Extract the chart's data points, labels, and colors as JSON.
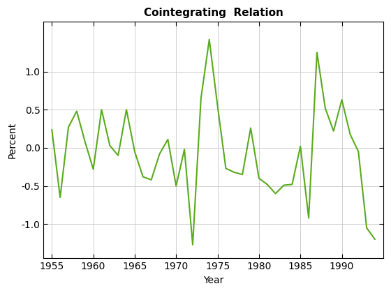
{
  "title": "Cointegrating  Relation",
  "xlabel": "Year",
  "ylabel": "Percent",
  "line_color": "#5aaa1e",
  "line_width": 1.5,
  "background_color": "#ffffff",
  "grid_color": "#c8c8c8",
  "years": [
    1955,
    1956,
    1957,
    1958,
    1959,
    1960,
    1961,
    1962,
    1963,
    1964,
    1965,
    1966,
    1967,
    1968,
    1969,
    1970,
    1971,
    1972,
    1973,
    1974,
    1975,
    1976,
    1977,
    1978,
    1979,
    1980,
    1981,
    1982,
    1983,
    1984,
    1985,
    1986,
    1987,
    1988,
    1989,
    1990,
    1991,
    1992,
    1993,
    1994
  ],
  "values": [
    0.24,
    -0.65,
    0.27,
    0.48,
    0.08,
    -0.28,
    0.5,
    0.03,
    -0.1,
    0.5,
    -0.05,
    -0.38,
    -0.42,
    -0.08,
    0.11,
    -0.5,
    -0.02,
    -1.27,
    0.65,
    1.42,
    0.55,
    -0.27,
    -0.32,
    -0.35,
    0.26,
    -0.4,
    -0.48,
    -0.6,
    -0.49,
    -0.48,
    0.02,
    -0.92,
    1.25,
    0.52,
    0.22,
    0.63,
    0.18,
    -0.05,
    -1.05,
    -1.2
  ],
  "xlim": [
    1954.0,
    1995.0
  ],
  "ylim": [
    -1.45,
    1.65
  ],
  "xticks": [
    1955,
    1960,
    1965,
    1970,
    1975,
    1980,
    1985,
    1990
  ],
  "yticks": [
    -1.0,
    -0.5,
    0.0,
    0.5,
    1.0
  ],
  "title_fontsize": 11,
  "label_fontsize": 10,
  "tick_fontsize": 10
}
